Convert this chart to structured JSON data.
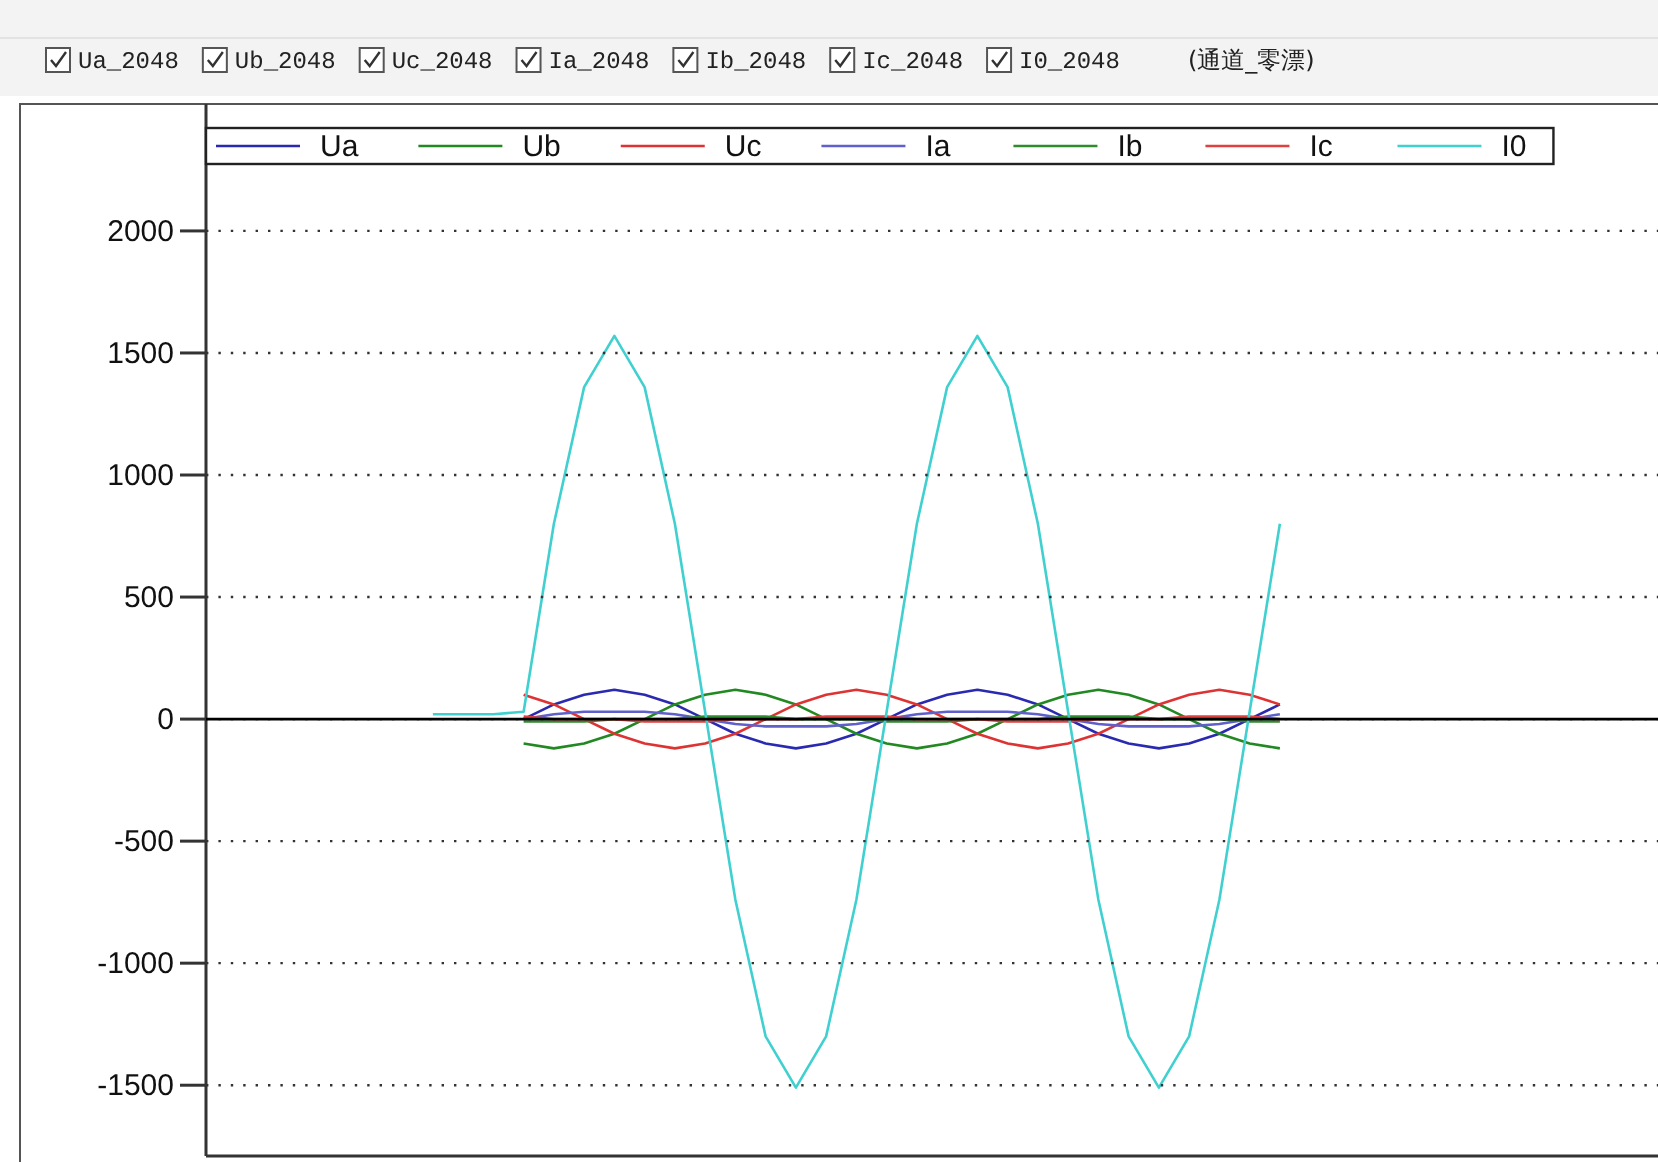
{
  "chart_data": {
    "type": "line",
    "annotations": [
      "Ua_2048",
      "Ub_2048",
      "Uc_2048",
      "Ia_2048",
      "Ib_2048",
      "Ic_2048",
      "I0_2048",
      "(通道_零漂)"
    ],
    "categories": [
      null,
      null,
      null,
      null,
      null,
      null,
      null,
      null,
      null,
      null,
      null,
      null,
      null,
      null,
      null,
      null,
      null,
      null,
      null,
      null,
      null,
      null,
      null,
      null,
      null,
      null,
      null,
      null,
      null,
      null,
      null,
      null,
      null,
      null,
      null,
      null,
      null,
      null,
      null,
      null,
      null,
      null,
      null,
      null,
      null,
      null,
      null,
      null
    ],
    "ylim": [
      -1790,
      2520
    ],
    "yticks": [
      -1500,
      -1000,
      -500,
      0,
      500,
      1000,
      1500,
      2000
    ],
    "grid": "y",
    "legend": "top",
    "tick_labels": "y",
    "line_style": "solid",
    "series": [
      {
        "name": "Ua",
        "color": "#2a2ab0",
        "values": [
          null,
          null,
          null,
          null,
          null,
          null,
          null,
          null,
          null,
          null,
          0,
          60,
          100,
          120,
          100,
          60,
          0,
          -60,
          -100,
          -120,
          -100,
          -60,
          0,
          60,
          100,
          120,
          100,
          60,
          0,
          -60,
          -100,
          -120,
          -100,
          -60,
          0,
          60,
          null,
          null,
          null,
          null,
          null,
          null,
          null,
          null,
          null,
          null,
          null,
          null
        ]
      },
      {
        "name": "Ub",
        "color": "#228822",
        "values": [
          null,
          null,
          null,
          null,
          null,
          null,
          null,
          null,
          null,
          null,
          -100,
          -120,
          -100,
          -60,
          0,
          60,
          100,
          120,
          100,
          60,
          0,
          -60,
          -100,
          -120,
          -100,
          -60,
          0,
          60,
          100,
          120,
          100,
          60,
          0,
          -60,
          -100,
          -120,
          null,
          null,
          null,
          null,
          null,
          null,
          null,
          null,
          null,
          null,
          null,
          null
        ]
      },
      {
        "name": "Uc",
        "color": "#dd3333",
        "values": [
          null,
          null,
          null,
          null,
          null,
          null,
          null,
          null,
          null,
          null,
          100,
          60,
          0,
          -60,
          -100,
          -120,
          -100,
          -60,
          0,
          60,
          100,
          120,
          100,
          60,
          0,
          -60,
          -100,
          -120,
          -100,
          -60,
          0,
          60,
          100,
          120,
          100,
          60,
          null,
          null,
          null,
          null,
          null,
          null,
          null,
          null,
          null,
          null,
          null,
          null
        ]
      },
      {
        "name": "Ia",
        "color": "#6060cc",
        "values": [
          null,
          null,
          null,
          null,
          null,
          null,
          null,
          null,
          null,
          null,
          0,
          20,
          30,
          30,
          30,
          20,
          0,
          -20,
          -30,
          -30,
          -30,
          -20,
          0,
          20,
          30,
          30,
          30,
          20,
          0,
          -20,
          -30,
          -30,
          -30,
          -20,
          0,
          20,
          null,
          null,
          null,
          null,
          null,
          null,
          null,
          null,
          null,
          null,
          null,
          null
        ]
      },
      {
        "name": "Ib",
        "color": "#2e8b2e",
        "values": [
          null,
          null,
          null,
          null,
          null,
          null,
          null,
          null,
          null,
          null,
          -10,
          -10,
          -10,
          0,
          0,
          0,
          10,
          10,
          10,
          0,
          0,
          0,
          -10,
          -10,
          -10,
          0,
          0,
          0,
          10,
          10,
          10,
          0,
          0,
          0,
          -10,
          -10,
          null,
          null,
          null,
          null,
          null,
          null,
          null,
          null,
          null,
          null,
          null,
          null
        ]
      },
      {
        "name": "Ic",
        "color": "#e04040",
        "values": [
          null,
          null,
          null,
          null,
          null,
          null,
          null,
          null,
          null,
          null,
          10,
          0,
          0,
          0,
          -10,
          -10,
          -10,
          0,
          0,
          0,
          10,
          10,
          10,
          0,
          0,
          0,
          -10,
          -10,
          -10,
          0,
          0,
          0,
          10,
          10,
          10,
          0,
          null,
          null,
          null,
          null,
          null,
          null,
          null,
          null,
          null,
          null,
          null,
          null
        ]
      },
      {
        "name": "I0",
        "color": "#40d0d0",
        "values": [
          null,
          null,
          null,
          null,
          null,
          null,
          null,
          20,
          20,
          20,
          30,
          800,
          1360,
          1570,
          1360,
          800,
          30,
          -740,
          -1300,
          -1510,
          -1300,
          -740,
          30,
          800,
          1360,
          1570,
          1360,
          800,
          30,
          -740,
          -1300,
          -1510,
          -1300,
          -740,
          30,
          800,
          null,
          null,
          null,
          null,
          null,
          null,
          null,
          null,
          null,
          null,
          null,
          null
        ]
      }
    ]
  }
}
